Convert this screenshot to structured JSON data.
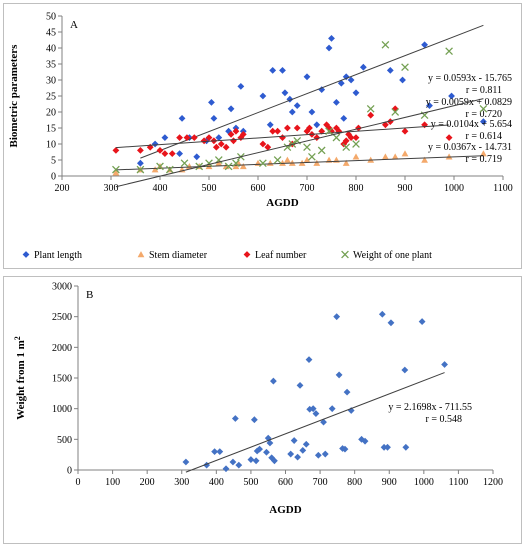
{
  "chart_data": [
    {
      "type": "scatter",
      "panel_label": "A",
      "xlabel": "AGDD",
      "ylabel": "Biometric parameters",
      "xlim": [
        200,
        1100
      ],
      "ylim": [
        0,
        50
      ],
      "xticks": [
        200,
        300,
        400,
        500,
        600,
        700,
        800,
        900,
        1000,
        1100
      ],
      "yticks": [
        0,
        5,
        10,
        15,
        20,
        25,
        30,
        35,
        40,
        45,
        50
      ],
      "grid": false,
      "legend_position": "bottom",
      "series": [
        {
          "name": "Plant length",
          "marker": "diamond",
          "color": "#2e5bd0",
          "trend_slope": 0.0593,
          "trend_intercept": -15.765,
          "equation": "y = 0.0593x - 15.765",
          "r_label": "r = 0.811",
          "points": [
            [
              360,
              4
            ],
            [
              390,
              10
            ],
            [
              410,
              12
            ],
            [
              440,
              7
            ],
            [
              445,
              18
            ],
            [
              460,
              12
            ],
            [
              475,
              6
            ],
            [
              495,
              11
            ],
            [
              505,
              23
            ],
            [
              510,
              18
            ],
            [
              520,
              12
            ],
            [
              540,
              14
            ],
            [
              545,
              21
            ],
            [
              555,
              15
            ],
            [
              565,
              28
            ],
            [
              570,
              14
            ],
            [
              610,
              25
            ],
            [
              625,
              16
            ],
            [
              630,
              33
            ],
            [
              650,
              33
            ],
            [
              655,
              26
            ],
            [
              665,
              24
            ],
            [
              670,
              20
            ],
            [
              680,
              22
            ],
            [
              700,
              31
            ],
            [
              710,
              20
            ],
            [
              720,
              16
            ],
            [
              730,
              27
            ],
            [
              745,
              40
            ],
            [
              750,
              43
            ],
            [
              760,
              23
            ],
            [
              770,
              29
            ],
            [
              775,
              18
            ],
            [
              780,
              31
            ],
            [
              790,
              30
            ],
            [
              800,
              26
            ],
            [
              815,
              34
            ],
            [
              870,
              33
            ],
            [
              895,
              30
            ],
            [
              940,
              41
            ],
            [
              950,
              22
            ],
            [
              995,
              25
            ],
            [
              1060,
              17
            ]
          ]
        },
        {
          "name": "Stem diameter",
          "marker": "triangle",
          "color": "#f4a96b",
          "trend_slope": 0.0059,
          "trend_intercept": 0.0829,
          "equation": "y = 0.0059x + 0.0829",
          "r_label": "r = 0.720",
          "points": [
            [
              310,
              1
            ],
            [
              360,
              2
            ],
            [
              390,
              2
            ],
            [
              400,
              3
            ],
            [
              420,
              2
            ],
            [
              445,
              2
            ],
            [
              460,
              3
            ],
            [
              480,
              3
            ],
            [
              500,
              3
            ],
            [
              520,
              4
            ],
            [
              535,
              3
            ],
            [
              555,
              3
            ],
            [
              560,
              4
            ],
            [
              570,
              3
            ],
            [
              600,
              4
            ],
            [
              625,
              4
            ],
            [
              650,
              4
            ],
            [
              660,
              5
            ],
            [
              670,
              4
            ],
            [
              690,
              4
            ],
            [
              700,
              5
            ],
            [
              720,
              4
            ],
            [
              745,
              5
            ],
            [
              760,
              5
            ],
            [
              780,
              4
            ],
            [
              800,
              6
            ],
            [
              830,
              5
            ],
            [
              860,
              6
            ],
            [
              880,
              6
            ],
            [
              900,
              7
            ],
            [
              940,
              5
            ],
            [
              990,
              6
            ],
            [
              1060,
              7
            ]
          ]
        },
        {
          "name": "Leaf number",
          "marker": "diamond",
          "color": "#e8141b",
          "trend_slope": 0.0104,
          "trend_intercept": 5.654,
          "equation": "y = 0.0104x + 5.654",
          "r_label": "r = 0.614",
          "points": [
            [
              310,
              8
            ],
            [
              360,
              8
            ],
            [
              380,
              9
            ],
            [
              400,
              8
            ],
            [
              410,
              7
            ],
            [
              425,
              7
            ],
            [
              440,
              12
            ],
            [
              455,
              12
            ],
            [
              470,
              12
            ],
            [
              490,
              11
            ],
            [
              500,
              12
            ],
            [
              510,
              11
            ],
            [
              515,
              9
            ],
            [
              525,
              10
            ],
            [
              535,
              9
            ],
            [
              545,
              13
            ],
            [
              550,
              11
            ],
            [
              555,
              14
            ],
            [
              565,
              12
            ],
            [
              570,
              13
            ],
            [
              610,
              10
            ],
            [
              620,
              9
            ],
            [
              630,
              14
            ],
            [
              640,
              14
            ],
            [
              650,
              12
            ],
            [
              660,
              15
            ],
            [
              670,
              10
            ],
            [
              680,
              15
            ],
            [
              700,
              14
            ],
            [
              705,
              15
            ],
            [
              710,
              13
            ],
            [
              720,
              12
            ],
            [
              730,
              14
            ],
            [
              740,
              16
            ],
            [
              745,
              15
            ],
            [
              750,
              14
            ],
            [
              760,
              15
            ],
            [
              765,
              14
            ],
            [
              775,
              10
            ],
            [
              780,
              11
            ],
            [
              785,
              13
            ],
            [
              790,
              12
            ],
            [
              800,
              12
            ],
            [
              805,
              15
            ],
            [
              830,
              19
            ],
            [
              860,
              16
            ],
            [
              870,
              17
            ],
            [
              880,
              21
            ],
            [
              900,
              14
            ],
            [
              940,
              16
            ],
            [
              990,
              12
            ]
          ]
        },
        {
          "name": "Weight of one plant",
          "marker": "x",
          "color": "#74a053",
          "trend_slope": 0.0367,
          "trend_intercept": -14.731,
          "equation": "y = 0.0367x - 14.731",
          "r_label": "r = 0.719",
          "points": [
            [
              310,
              2
            ],
            [
              360,
              2
            ],
            [
              400,
              3
            ],
            [
              420,
              2
            ],
            [
              450,
              4
            ],
            [
              480,
              3
            ],
            [
              500,
              4
            ],
            [
              520,
              5
            ],
            [
              540,
              3
            ],
            [
              555,
              4
            ],
            [
              565,
              6
            ],
            [
              610,
              4
            ],
            [
              640,
              5
            ],
            [
              660,
              9
            ],
            [
              670,
              10
            ],
            [
              680,
              11
            ],
            [
              700,
              9
            ],
            [
              710,
              6
            ],
            [
              730,
              8
            ],
            [
              745,
              14
            ],
            [
              760,
              12
            ],
            [
              780,
              9
            ],
            [
              800,
              10
            ],
            [
              830,
              21
            ],
            [
              860,
              41
            ],
            [
              880,
              20
            ],
            [
              900,
              34
            ],
            [
              940,
              19
            ],
            [
              990,
              39
            ],
            [
              1060,
              21
            ]
          ]
        }
      ]
    },
    {
      "type": "scatter",
      "panel_label": "B",
      "xlabel": "AGDD",
      "ylabel": "Weight from 1 m",
      "ylabel_sup": "2",
      "xlim": [
        0,
        1200
      ],
      "ylim": [
        0,
        3000
      ],
      "xticks": [
        0,
        100,
        200,
        300,
        400,
        500,
        600,
        700,
        800,
        900,
        1000,
        1100,
        1200
      ],
      "yticks": [
        0,
        500,
        1000,
        1500,
        2000,
        2500,
        3000
      ],
      "grid": false,
      "series": [
        {
          "name": "",
          "marker": "diamond",
          "color": "#4472c4",
          "trend_slope": 2.1698,
          "trend_intercept": -711.55,
          "equation": "y = 2.1698x - 711.55",
          "r_label": "r = 0.548",
          "points": [
            [
              312,
              130
            ],
            [
              372,
              80
            ],
            [
              395,
              300
            ],
            [
              410,
              300
            ],
            [
              428,
              20
            ],
            [
              448,
              130
            ],
            [
              455,
              840
            ],
            [
              465,
              80
            ],
            [
              500,
              170
            ],
            [
              510,
              820
            ],
            [
              515,
              150
            ],
            [
              518,
              310
            ],
            [
              525,
              340
            ],
            [
              545,
              290
            ],
            [
              550,
              520
            ],
            [
              555,
              440
            ],
            [
              560,
              200
            ],
            [
              565,
              1450
            ],
            [
              568,
              150
            ],
            [
              615,
              260
            ],
            [
              625,
              480
            ],
            [
              635,
              210
            ],
            [
              642,
              1380
            ],
            [
              650,
              320
            ],
            [
              660,
              420
            ],
            [
              668,
              1800
            ],
            [
              670,
              990
            ],
            [
              680,
              1000
            ],
            [
              688,
              920
            ],
            [
              695,
              240
            ],
            [
              710,
              780
            ],
            [
              715,
              260
            ],
            [
              735,
              1000
            ],
            [
              748,
              2500
            ],
            [
              755,
              1550
            ],
            [
              765,
              350
            ],
            [
              772,
              340
            ],
            [
              778,
              1270
            ],
            [
              790,
              970
            ],
            [
              820,
              500
            ],
            [
              830,
              470
            ],
            [
              880,
              2540
            ],
            [
              885,
              370
            ],
            [
              895,
              370
            ],
            [
              905,
              2400
            ],
            [
              945,
              1630
            ],
            [
              948,
              370
            ],
            [
              995,
              2420
            ],
            [
              1060,
              1720
            ]
          ]
        }
      ]
    }
  ]
}
